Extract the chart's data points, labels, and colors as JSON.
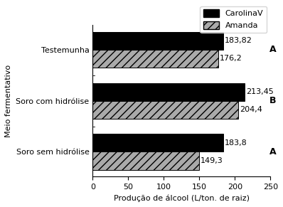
{
  "categories": [
    "Soro sem hidrólise",
    "Soro com hidrólise",
    "Testemunha"
  ],
  "carolinav_values": [
    183.8,
    213.45,
    183.82
  ],
  "amanda_values": [
    149.3,
    204.4,
    176.2
  ],
  "carolinav_labels": [
    "183,8",
    "213,45",
    "183,82"
  ],
  "amanda_labels": [
    "149,3",
    "204,4",
    "176,2"
  ],
  "group_labels": [
    "A",
    "B",
    "A"
  ],
  "xlabel": "Produção de álcool (L/ton. de raiz)",
  "ylabel": "Meio fermentativo",
  "xlim": [
    0,
    250
  ],
  "xticks": [
    0,
    50,
    100,
    150,
    200,
    250
  ],
  "legend_carolinav": "CarolinaV",
  "legend_amanda": "Amanda",
  "bar_height": 0.35,
  "carolinav_color": "#000000",
  "amanda_hatch": "///",
  "amanda_facecolor": "#aaaaaa",
  "title_fontsize": 9,
  "label_fontsize": 8,
  "tick_fontsize": 8
}
